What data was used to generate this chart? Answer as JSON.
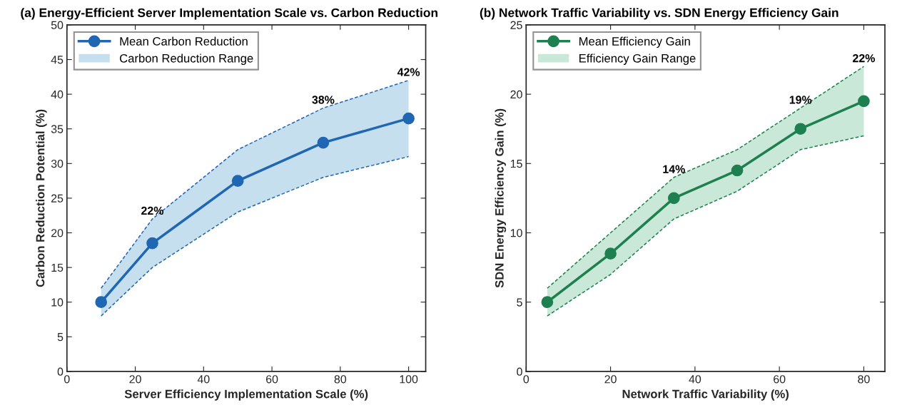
{
  "chart_data": [
    {
      "type": "line",
      "title": "(a) Energy-Efficient Server Implementation Scale vs. Carbon Reduction",
      "xlabel": "Server Efficiency Implementation Scale (%)",
      "ylabel": "Carbon Reduction Potential (%)",
      "x": [
        10,
        25,
        50,
        75,
        100
      ],
      "xlim": [
        0,
        105
      ],
      "xticks": [
        0,
        20,
        40,
        60,
        80,
        100
      ],
      "ylim": [
        0,
        50
      ],
      "yticks": [
        0,
        5,
        10,
        15,
        20,
        25,
        30,
        35,
        40,
        45,
        50
      ],
      "grid": false,
      "legend": "top left",
      "series": [
        {
          "name": "Mean Carbon Reduction",
          "color": "#1f66b3",
          "values": [
            10,
            18.5,
            27.5,
            33,
            36.5
          ],
          "lower": [
            8,
            15,
            23,
            28,
            31
          ],
          "upper": [
            12,
            22,
            32,
            38,
            42
          ],
          "line_style": "solid",
          "marker": "circle"
        },
        {
          "type": "area",
          "name": "Carbon Reduction Range",
          "color": "#c6dfee",
          "values": [
            null,
            null,
            null,
            null,
            null
          ]
        },
        {
          "color": "#1f66b3",
          "values": [
            8,
            15,
            23,
            28,
            31
          ],
          "line_style": "dashed",
          "marker": "none"
        },
        {
          "color": "#1f66b3",
          "values": [
            12,
            22,
            32,
            38,
            42
          ],
          "line_style": "dashed",
          "marker": "none"
        }
      ],
      "annotations": [
        {
          "text": "22%",
          "x": 25,
          "y": 22
        },
        {
          "text": "38%",
          "x": 75,
          "y": 38
        },
        {
          "text": "42%",
          "x": 100,
          "y": 42
        }
      ]
    },
    {
      "type": "line",
      "title": "(b) Network Traffic Variability vs. SDN Energy Efficiency Gain",
      "xlabel": "Network Traffic Variability (%)",
      "ylabel": "SDN Energy Efficiency Gain (%)",
      "x": [
        5,
        20,
        35,
        50,
        65,
        80
      ],
      "xlim": [
        0,
        85
      ],
      "xticks": [
        0,
        20,
        40,
        60,
        80
      ],
      "ylim": [
        0,
        25
      ],
      "yticks": [
        0,
        5,
        10,
        15,
        20,
        25
      ],
      "grid": false,
      "legend": "top left",
      "series": [
        {
          "name": "Mean Efficiency Gain",
          "color": "#1e8050",
          "values": [
            5,
            8.5,
            12.5,
            14.5,
            17.5,
            19.5
          ],
          "lower": [
            4,
            7,
            11,
            13,
            16,
            17
          ],
          "upper": [
            6,
            10,
            14,
            16,
            19,
            22
          ],
          "line_style": "solid",
          "marker": "circle"
        },
        {
          "type": "area",
          "name": "Efficiency Gain Range",
          "color": "#c9e8d8",
          "values": [
            null,
            null,
            null,
            null,
            null,
            null
          ]
        },
        {
          "color": "#1e8050",
          "values": [
            4,
            7,
            11,
            13,
            16,
            17
          ],
          "line_style": "dashed",
          "marker": "none"
        },
        {
          "color": "#1e8050",
          "values": [
            6,
            10,
            14,
            16,
            19,
            22
          ],
          "line_style": "dashed",
          "marker": "none"
        }
      ],
      "annotations": [
        {
          "text": "14%",
          "x": 35,
          "y": 14
        },
        {
          "text": "19%",
          "x": 65,
          "y": 19
        },
        {
          "text": "22%",
          "x": 80,
          "y": 22
        }
      ]
    }
  ]
}
